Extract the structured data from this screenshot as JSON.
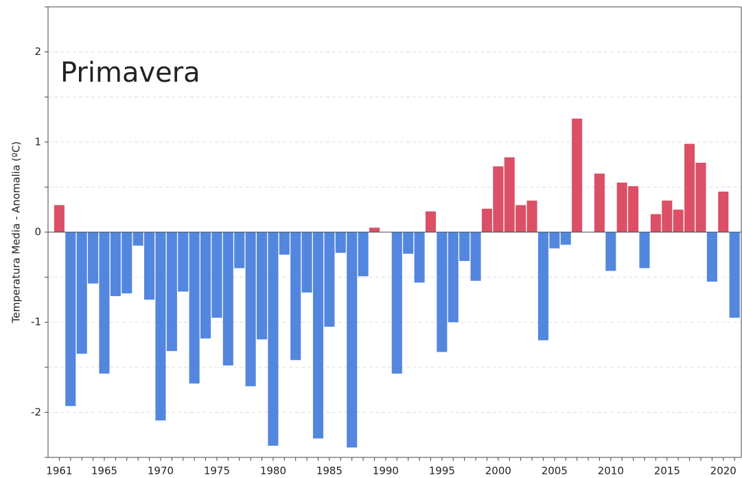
{
  "chart_data": {
    "type": "bar",
    "title": "Primavera",
    "y_label": "Temperatura Media - Anomalia (ºC)",
    "x": [
      1961,
      1962,
      1963,
      1964,
      1965,
      1966,
      1967,
      1968,
      1969,
      1970,
      1971,
      1972,
      1973,
      1974,
      1975,
      1976,
      1977,
      1978,
      1979,
      1980,
      1981,
      1982,
      1983,
      1984,
      1985,
      1986,
      1987,
      1988,
      1989,
      1990,
      1991,
      1992,
      1993,
      1994,
      1995,
      1996,
      1997,
      1998,
      1999,
      2000,
      2001,
      2002,
      2003,
      2004,
      2005,
      2006,
      2007,
      2008,
      2009,
      2010,
      2011,
      2012,
      2013,
      2014,
      2015,
      2016,
      2017,
      2018,
      2019,
      2020,
      2021
    ],
    "values": [
      0.3,
      -1.93,
      -1.35,
      -0.57,
      -1.57,
      -0.71,
      -0.68,
      -0.15,
      -0.75,
      -2.09,
      -1.32,
      -0.66,
      -1.68,
      -1.18,
      -0.95,
      -1.48,
      -0.4,
      -1.71,
      -1.19,
      -2.37,
      -0.25,
      -1.42,
      -0.67,
      -2.29,
      -1.05,
      -0.23,
      -2.39,
      -0.49,
      0.05,
      null,
      -1.57,
      -0.24,
      -0.56,
      0.23,
      -1.33,
      -1.0,
      -0.32,
      -0.54,
      0.26,
      0.73,
      0.83,
      0.3,
      0.35,
      -1.2,
      -0.18,
      -0.14,
      1.26,
      null,
      0.65,
      -0.43,
      0.55,
      0.51,
      -0.4,
      0.2,
      0.35,
      0.25,
      0.98,
      0.77,
      -0.55,
      0.45,
      -0.95
    ],
    "positive_color": "#d9475e",
    "negative_color": "#4a7fdc",
    "xlim": [
      1960,
      2021.6
    ],
    "xticks": [
      1961,
      1965,
      1970,
      1975,
      1980,
      1985,
      1990,
      1995,
      2000,
      2005,
      2010,
      2015,
      2020
    ],
    "ylim": [
      -2.5,
      2.5
    ],
    "yticks": [
      -2,
      -1,
      0,
      1,
      2
    ],
    "y_minor_ticks": [
      -2.5,
      -1.5,
      -0.5,
      0.5,
      1.5,
      2.5
    ],
    "grid": true
  }
}
